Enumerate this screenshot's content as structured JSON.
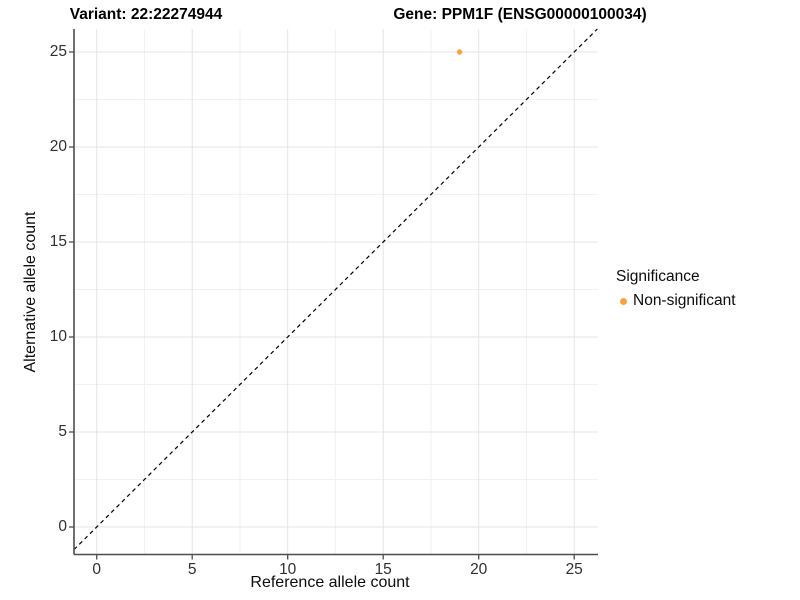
{
  "titles": {
    "variant": "Variant: 22:22274944",
    "gene": "Gene: PPM1F (ENSG00000100034)"
  },
  "axes": {
    "x_label": "Reference allele count",
    "y_label": "Alternative allele count"
  },
  "legend": {
    "title": "Significance",
    "items": [
      {
        "label": "Non-significant",
        "color": "#F9A243"
      }
    ]
  },
  "colors": {
    "background": "#ffffff",
    "axis_line": "#4d4d4d",
    "major_grid": "#e4e4e4",
    "minor_grid": "#f1f1f1",
    "dashed_line": "#000000",
    "point": "#F9A243",
    "tick_text": "#303030"
  },
  "chart_data": {
    "type": "scatter",
    "title": "Variant: 22:22274944 | Gene: PPM1F (ENSG00000100034)",
    "xlabel": "Reference allele count",
    "ylabel": "Alternative allele count",
    "xlim": [
      -1.25,
      26.25
    ],
    "ylim": [
      -1.25,
      26.25
    ],
    "x_ticks": [
      0,
      5,
      10,
      15,
      20,
      25
    ],
    "y_ticks": [
      0,
      5,
      10,
      15,
      20,
      25
    ],
    "minor_ticks": [
      2.5,
      7.5,
      12.5,
      17.5,
      22.5
    ],
    "grid": true,
    "legend_position": "right",
    "reference_line": {
      "type": "identity",
      "equation": "y = x",
      "style": "dashed",
      "color": "#000000"
    },
    "series": [
      {
        "name": "Non-significant",
        "color": "#F9A243",
        "points": [
          {
            "x": 19,
            "y": 25
          }
        ]
      }
    ]
  }
}
